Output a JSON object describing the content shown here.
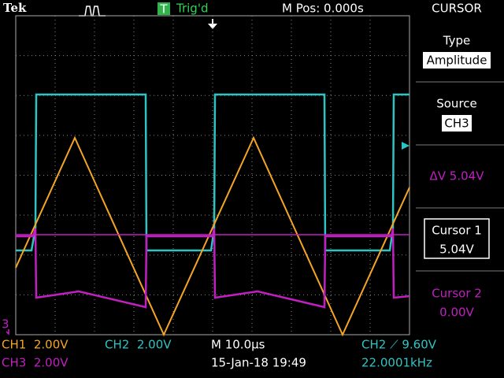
{
  "header": {
    "brand": "Tek",
    "trigger_badge": "T",
    "trigger_status": "Trig'd",
    "position": "M Pos: 0.000s"
  },
  "menu": {
    "title": "CURSOR",
    "type_label": "Type",
    "type_value": "Amplitude",
    "source_label": "Source",
    "source_value": "CH3",
    "delta": "ΔV 5.04V",
    "cursor1_label": "Cursor 1",
    "cursor1_value": "5.04V",
    "cursor2_label": "Cursor 2",
    "cursor2_value": "0.00V"
  },
  "screen": {
    "ch3_marker": "3"
  },
  "footer": {
    "ch1": "CH1  2.00V",
    "ch2": "CH2  2.00V",
    "ch3": "CH3  2.00V",
    "timebase": "M 10.0µs",
    "date": "15-Jan-18 19:49",
    "trigger": "CH2 ⟋ 9.60V",
    "frequency": "22.0001kHz"
  }
}
